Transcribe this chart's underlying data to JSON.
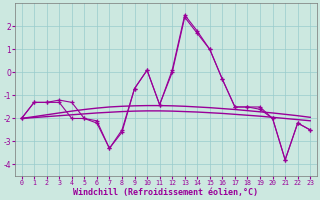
{
  "xlabel": "Windchill (Refroidissement éolien,°C)",
  "bg_color": "#cce8e0",
  "grid_color": "#99cccc",
  "line_color": "#990099",
  "x": [
    0,
    1,
    2,
    3,
    4,
    5,
    6,
    7,
    8,
    9,
    10,
    11,
    12,
    13,
    14,
    15,
    16,
    17,
    18,
    19,
    20,
    21,
    22,
    23
  ],
  "line1": [
    -2.0,
    -1.3,
    -1.3,
    -1.2,
    -1.3,
    -2.0,
    -2.1,
    -3.3,
    -2.6,
    -0.7,
    0.1,
    -1.4,
    0.1,
    2.5,
    1.8,
    1.0,
    -0.3,
    -1.5,
    -1.5,
    -1.5,
    -2.0,
    -3.8,
    -2.2,
    -2.5
  ],
  "line2": [
    -2.0,
    -1.3,
    -1.3,
    -1.3,
    -2.0,
    -2.0,
    -2.2,
    -3.3,
    -2.5,
    -0.7,
    0.1,
    -1.4,
    0.0,
    2.4,
    1.7,
    1.0,
    -0.3,
    -1.5,
    -1.5,
    -1.6,
    -2.0,
    -3.8,
    -2.2,
    -2.5
  ],
  "lin1": [
    -2.0,
    -1.92,
    -1.84,
    -1.76,
    -1.68,
    -1.61,
    -1.55,
    -1.5,
    -1.47,
    -1.45,
    -1.44,
    -1.44,
    -1.45,
    -1.47,
    -1.5,
    -1.53,
    -1.57,
    -1.61,
    -1.66,
    -1.71,
    -1.76,
    -1.82,
    -1.88,
    -1.95
  ],
  "lin2": [
    -2.0,
    -1.96,
    -1.92,
    -1.88,
    -1.84,
    -1.8,
    -1.76,
    -1.73,
    -1.7,
    -1.68,
    -1.67,
    -1.67,
    -1.68,
    -1.7,
    -1.72,
    -1.75,
    -1.78,
    -1.82,
    -1.86,
    -1.9,
    -1.95,
    -2.0,
    -2.05,
    -2.1
  ],
  "ylim": [
    -4.5,
    3.0
  ],
  "xlim": [
    -0.5,
    23.5
  ],
  "yticks": [
    -4,
    -3,
    -2,
    -1,
    0,
    1,
    2
  ],
  "xticks": [
    0,
    1,
    2,
    3,
    4,
    5,
    6,
    7,
    8,
    9,
    10,
    11,
    12,
    13,
    14,
    15,
    16,
    17,
    18,
    19,
    20,
    21,
    22,
    23
  ],
  "tick_color": "#990099",
  "label_color": "#990099"
}
